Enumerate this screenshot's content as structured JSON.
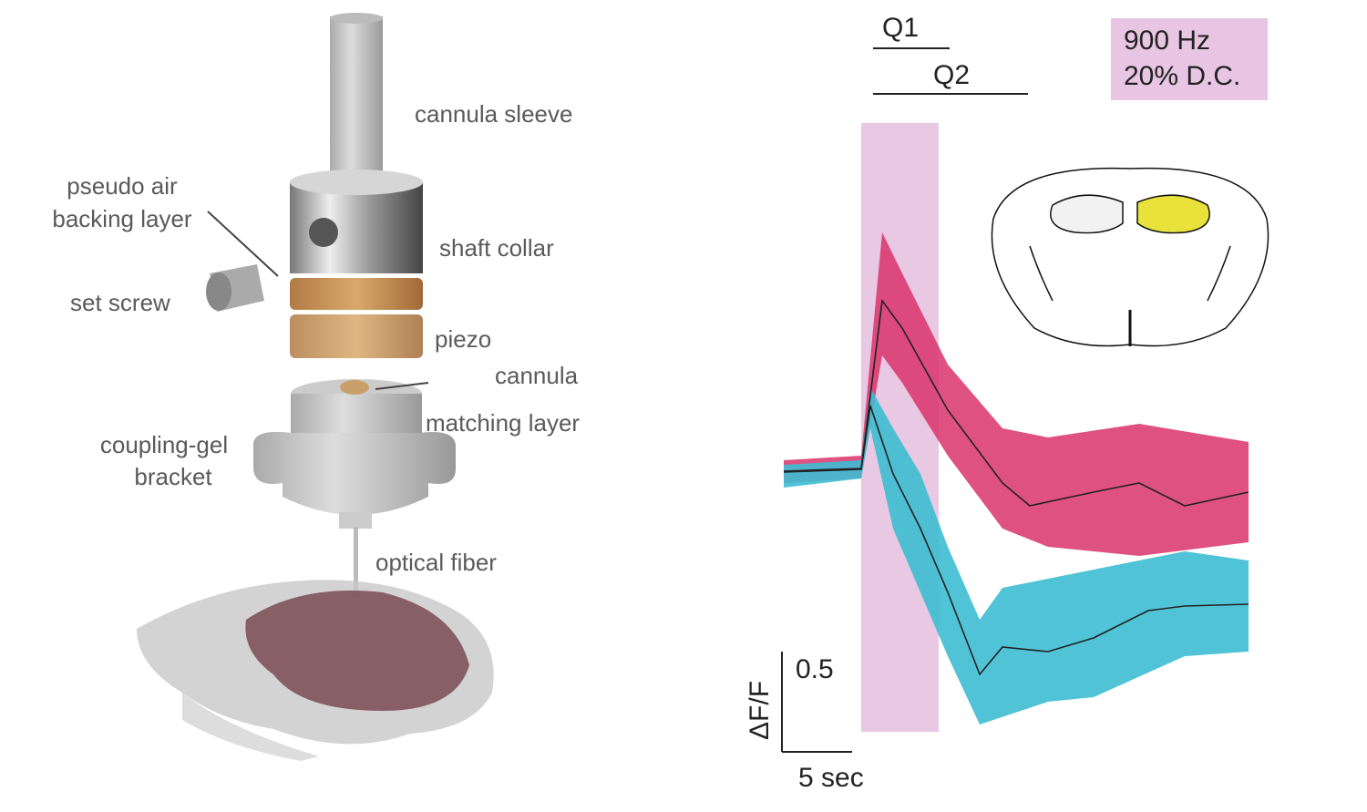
{
  "device": {
    "labels": {
      "cannula_sleeve": "cannula sleeve",
      "backing_layer": [
        "pseudo air",
        "backing layer"
      ],
      "shaft_collar": "shaft collar",
      "set_screw": "set screw",
      "piezo": "piezo",
      "cannula": "cannula",
      "matching_layer": "matching layer",
      "bracket": [
        "coupling-gel",
        "bracket"
      ],
      "optical_fiber": "optical fiber"
    }
  },
  "plot": {
    "q1": "Q1",
    "q2": "Q2",
    "stim": [
      "900 Hz",
      "20% D.C."
    ],
    "scale_y_value": "0.5",
    "scale_y_label": "ΔF/F",
    "scale_x_label": "5 sec"
  }
}
